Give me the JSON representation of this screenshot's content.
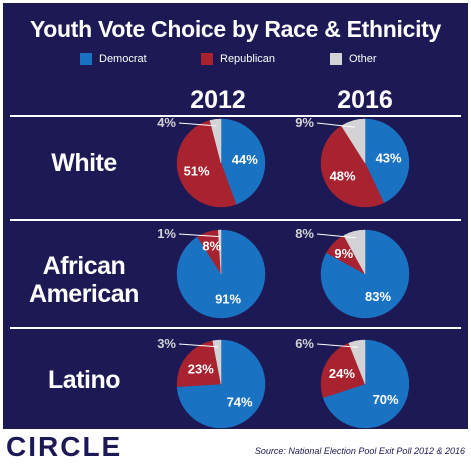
{
  "title": "Youth Vote Choice by Race & Ethnicity",
  "logo": "CIRCLE",
  "source": "Source: National Election Pool Exit Poll 2012 & 2016",
  "colors": {
    "democrat": "#1a73c2",
    "republican": "#a8222f",
    "other": "#d3d3d5",
    "background": "#1c1955",
    "text": "#ffffff"
  },
  "chart_data": {
    "type": "pie",
    "title": "Youth Vote Choice by Race & Ethnicity",
    "legend": [
      "Democrat",
      "Republican",
      "Other"
    ],
    "legend_placement": "top",
    "columns": [
      "2012",
      "2016"
    ],
    "rows": [
      {
        "label_lines": [
          "White"
        ],
        "pies": [
          {
            "year": "2012",
            "slices": [
              {
                "name": "Democrat",
                "value": 44,
                "label": "44%"
              },
              {
                "name": "Republican",
                "value": 51,
                "label": "51%"
              },
              {
                "name": "Other",
                "value": 4,
                "label": "4%"
              }
            ]
          },
          {
            "year": "2016",
            "slices": [
              {
                "name": "Democrat",
                "value": 43,
                "label": "43%"
              },
              {
                "name": "Republican",
                "value": 48,
                "label": "48%"
              },
              {
                "name": "Other",
                "value": 9,
                "label": "9%"
              }
            ]
          }
        ]
      },
      {
        "label_lines": [
          "African",
          "American"
        ],
        "pies": [
          {
            "year": "2012",
            "slices": [
              {
                "name": "Democrat",
                "value": 91,
                "label": "91%"
              },
              {
                "name": "Republican",
                "value": 8,
                "label": "8%"
              },
              {
                "name": "Other",
                "value": 1,
                "label": "1%"
              }
            ]
          },
          {
            "year": "2016",
            "slices": [
              {
                "name": "Democrat",
                "value": 83,
                "label": "83%"
              },
              {
                "name": "Republican",
                "value": 9,
                "label": "9%"
              },
              {
                "name": "Other",
                "value": 8,
                "label": "8%"
              }
            ]
          }
        ]
      },
      {
        "label_lines": [
          "Latino"
        ],
        "pies": [
          {
            "year": "2012",
            "slices": [
              {
                "name": "Democrat",
                "value": 74,
                "label": "74%"
              },
              {
                "name": "Republican",
                "value": 23,
                "label": "23%"
              },
              {
                "name": "Other",
                "value": 3,
                "label": "3%"
              }
            ]
          },
          {
            "year": "2016",
            "slices": [
              {
                "name": "Democrat",
                "value": 70,
                "label": "70%"
              },
              {
                "name": "Republican",
                "value": 24,
                "label": "24%"
              },
              {
                "name": "Other",
                "value": 6,
                "label": "6%"
              }
            ]
          }
        ]
      }
    ]
  }
}
